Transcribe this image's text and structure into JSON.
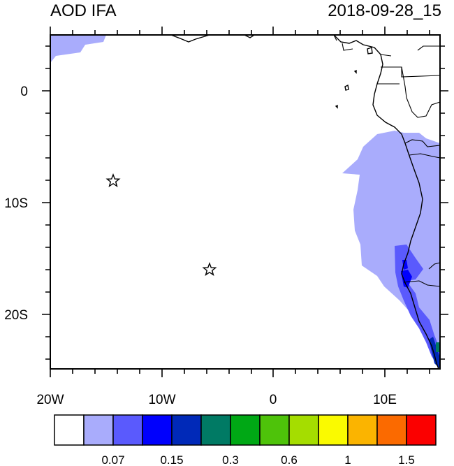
{
  "header": {
    "variable": "AOD IFA",
    "datetime": "2018-09-28_15"
  },
  "map": {
    "projection": "lat-lon",
    "lon_range": [
      -20,
      15
    ],
    "lat_range": [
      -25,
      5
    ],
    "lon_tick_labels": [
      "20W",
      "10W",
      "0",
      "10E"
    ],
    "lat_tick_labels": [
      "0",
      "10S",
      "20S"
    ],
    "markers": [
      {
        "symbol": "star",
        "lon": -14.3,
        "lat": -8.0
      },
      {
        "symbol": "star",
        "lon": -5.7,
        "lat": -16.0
      }
    ]
  },
  "colorbar": {
    "colors": [
      "#ffffff",
      "#a9acfc",
      "#5a5afd",
      "#0000fd",
      "#0029b8",
      "#007a64",
      "#00a815",
      "#4ec30a",
      "#a5dd00",
      "#fafa00",
      "#fbb400",
      "#fb6a00",
      "#fb0000"
    ],
    "labels": [
      "0.07",
      "0.15",
      "0.3",
      "0.6",
      "1",
      "1.5"
    ]
  }
}
